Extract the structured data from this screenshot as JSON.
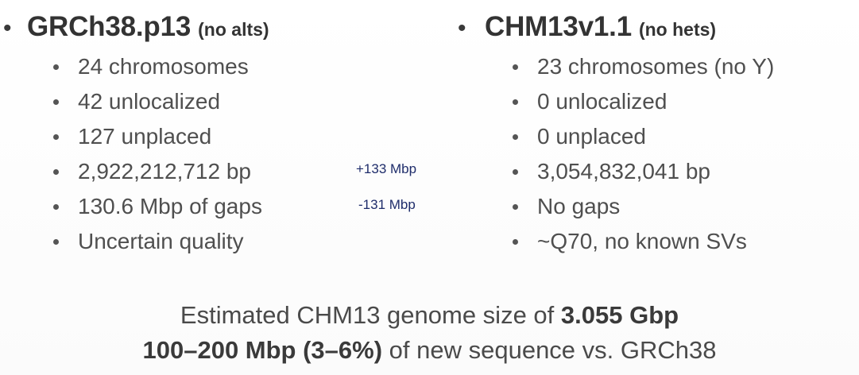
{
  "left": {
    "bullet": "•",
    "name": "GRCh38.p13",
    "qualifier": "(no alts)",
    "items": [
      "24 chromosomes",
      "42 unlocalized",
      "127 unplaced",
      "2,922,212,712 bp",
      "130.6 Mbp of gaps",
      "Uncertain quality"
    ]
  },
  "right": {
    "bullet": "•",
    "name": "CHM13v1.1",
    "qualifier": "(no hets)",
    "items": [
      "23 chromosomes (no Y)",
      "0 unlocalized",
      "0 unplaced",
      "3,054,832,041 bp",
      "No gaps",
      "~Q70, no known SVs"
    ]
  },
  "deltas": {
    "bp": "+133 Mbp",
    "gaps": "-131 Mbp"
  },
  "summary": {
    "line1_prefix": "Estimated CHM13 genome size of ",
    "line1_bold": "3.055 Gbp",
    "line2_bold": "100–200 Mbp (3–6%)",
    "line2_suffix": " of new sequence vs. GRCh38"
  },
  "colors": {
    "text": "#4d4d4d",
    "heading": "#333333",
    "delta": "#1f2d6b",
    "background": "#ffffff"
  }
}
